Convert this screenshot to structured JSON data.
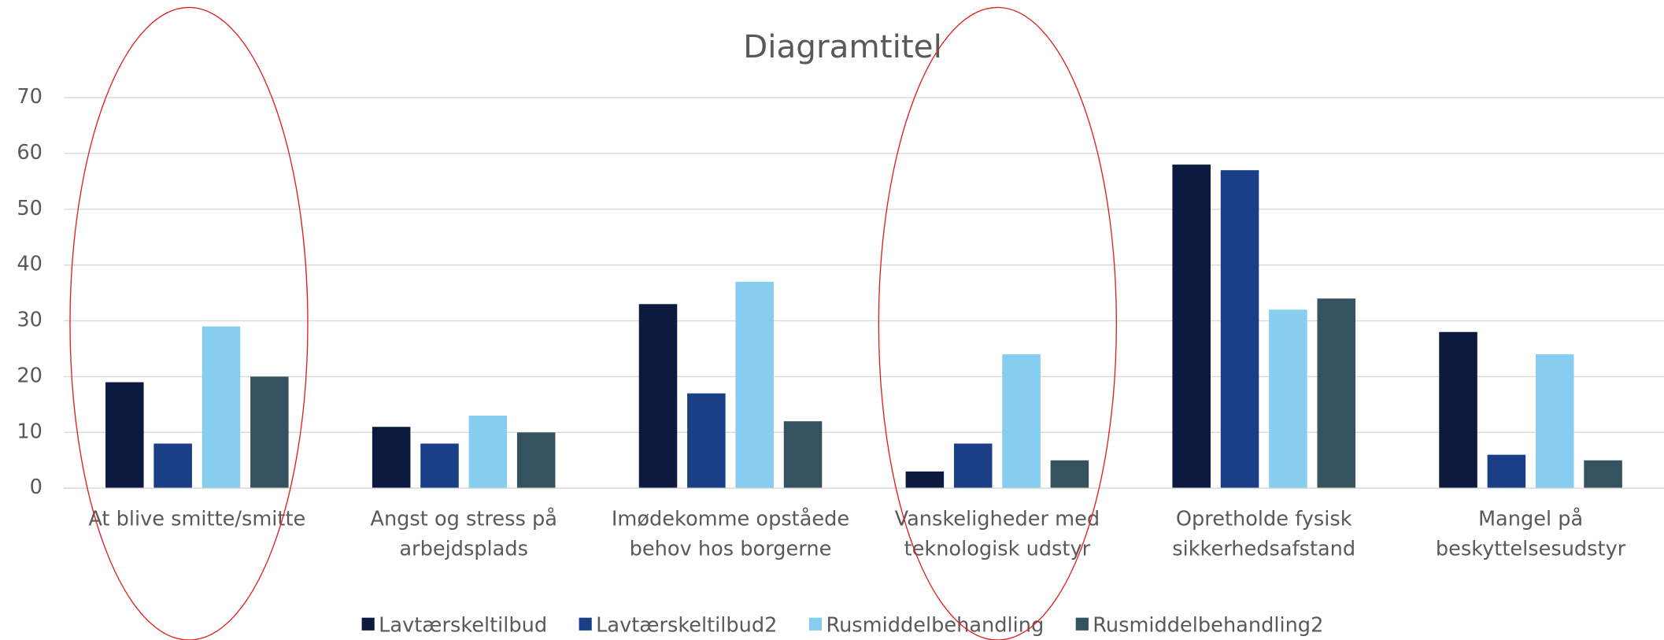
{
  "chart_data": {
    "type": "bar",
    "title": "Diagramtitel",
    "categories": [
      "At blive smitte/smitte",
      "Angst og stress på arbejdsplads",
      "Imødekomme opståede behov hos borgerne",
      "Vanskeligheder med teknologisk udstyr",
      "Opretholde fysisk sikkerhedsafstand",
      "Mangel på beskyttelsesudstyr"
    ],
    "series": [
      {
        "name": "Lavtærskeltilbud",
        "color": "#0b1a3e",
        "values": [
          19,
          11,
          33,
          3,
          58,
          28
        ]
      },
      {
        "name": "Lavtærskeltilbud2",
        "color": "#1a3f86",
        "values": [
          8,
          8,
          17,
          8,
          57,
          6
        ]
      },
      {
        "name": "Rusmiddelbehandling",
        "color": "#87cdf0",
        "values": [
          29,
          13,
          37,
          24,
          32,
          24
        ]
      },
      {
        "name": "Rusmiddelbehandling2",
        "color": "#34535f",
        "values": [
          20,
          10,
          12,
          5,
          34,
          5
        ]
      }
    ],
    "ylim": [
      0,
      70
    ],
    "yticks": [
      0,
      10,
      20,
      30,
      40,
      50,
      60,
      70
    ],
    "grid": true,
    "legend": "bottom"
  }
}
